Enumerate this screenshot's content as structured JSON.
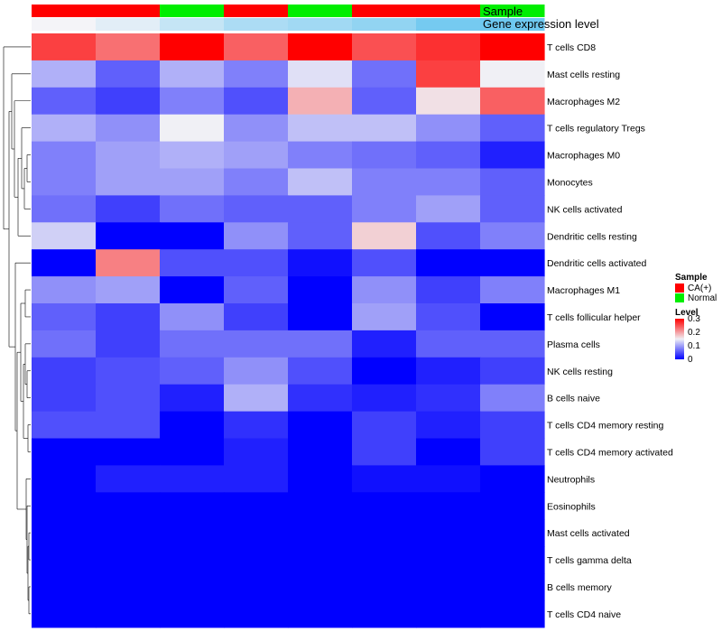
{
  "chart_data": {
    "type": "heatmap",
    "title": "",
    "annotation_tracks": [
      "Sample",
      "Gene expression level"
    ],
    "sample_groups": [
      "CA(+)",
      "CA(+)",
      "Normal",
      "CA(+)",
      "Normal",
      "CA(+)",
      "CA(+)",
      "Normal"
    ],
    "expression_levels": [
      0.55,
      0.5,
      0.42,
      0.35,
      0.32,
      0.28,
      0.2,
      0.18
    ],
    "rows": [
      "T cells CD8",
      "Mast cells resting",
      "Macrophages M2",
      "T cells regulatory  Tregs",
      "Macrophages M0",
      "Monocytes",
      "NK cells activated",
      "Dendritic cells resting",
      "Dendritic cells activated",
      "Macrophages M1",
      "T cells follicular helper",
      "Plasma cells",
      "NK cells resting",
      "B cells naive",
      "T cells CD4 memory resting",
      "T cells CD4 memory activated",
      "Neutrophils",
      "Eosinophils",
      "Mast cells activated",
      "T cells gamma delta",
      "B cells memory",
      "T cells CD4 naive"
    ],
    "values": [
      [
        0.26,
        0.23,
        0.3,
        0.24,
        0.3,
        0.25,
        0.27,
        0.3
      ],
      [
        0.11,
        0.06,
        0.11,
        0.08,
        0.14,
        0.07,
        0.26,
        0.15
      ],
      [
        0.06,
        0.04,
        0.08,
        0.05,
        0.19,
        0.06,
        0.16,
        0.24
      ],
      [
        0.11,
        0.09,
        0.15,
        0.09,
        0.12,
        0.12,
        0.09,
        0.06
      ],
      [
        0.08,
        0.1,
        0.11,
        0.1,
        0.08,
        0.07,
        0.06,
        0.02
      ],
      [
        0.08,
        0.1,
        0.1,
        0.08,
        0.12,
        0.08,
        0.08,
        0.06
      ],
      [
        0.07,
        0.04,
        0.07,
        0.06,
        0.06,
        0.08,
        0.1,
        0.06
      ],
      [
        0.13,
        0.0,
        0.0,
        0.09,
        0.06,
        0.17,
        0.05,
        0.08
      ],
      [
        0.0,
        0.22,
        0.05,
        0.05,
        0.01,
        0.05,
        0.0,
        0.0
      ],
      [
        0.09,
        0.1,
        0.0,
        0.06,
        0.0,
        0.09,
        0.04,
        0.08
      ],
      [
        0.06,
        0.04,
        0.09,
        0.04,
        0.0,
        0.1,
        0.05,
        0.0
      ],
      [
        0.07,
        0.04,
        0.07,
        0.07,
        0.07,
        0.02,
        0.06,
        0.06
      ],
      [
        0.04,
        0.05,
        0.06,
        0.09,
        0.05,
        0.0,
        0.02,
        0.04
      ],
      [
        0.04,
        0.05,
        0.02,
        0.11,
        0.03,
        0.02,
        0.03,
        0.08
      ],
      [
        0.05,
        0.05,
        0.0,
        0.03,
        0.0,
        0.04,
        0.02,
        0.04
      ],
      [
        0.0,
        0.0,
        0.0,
        0.02,
        0.0,
        0.04,
        0.0,
        0.04
      ],
      [
        0.0,
        0.02,
        0.02,
        0.02,
        0.0,
        0.01,
        0.01,
        0.0
      ],
      [
        0.0,
        0.0,
        0.0,
        0.0,
        0.0,
        0.0,
        0.0,
        0.0
      ],
      [
        0.0,
        0.0,
        0.0,
        0.0,
        0.0,
        0.0,
        0.0,
        0.0
      ],
      [
        0.0,
        0.0,
        0.0,
        0.0,
        0.0,
        0.0,
        0.0,
        0.0
      ],
      [
        0.0,
        0.0,
        0.0,
        0.0,
        0.0,
        0.0,
        0.0,
        0.0
      ],
      [
        0.0,
        0.0,
        0.0,
        0.0,
        0.0,
        0.0,
        0.0,
        0.0
      ]
    ],
    "color_range": [
      0,
      0.3
    ],
    "colors": {
      "low": "#0000ff",
      "mid": "#f0f0f5",
      "high": "#ff0000"
    },
    "legend": {
      "sample_title": "Sample",
      "sample_entries": [
        {
          "label": "CA(+)",
          "color": "#ff0000"
        },
        {
          "label": "Normal",
          "color": "#00ee00"
        }
      ],
      "level_title": "Level",
      "level_ticks": [
        {
          "label": "0.3",
          "value": 0.3
        },
        {
          "label": "0.2",
          "value": 0.2
        },
        {
          "label": "0.1",
          "value": 0.1
        },
        {
          "label": "0",
          "value": 0
        }
      ]
    },
    "expression_colors": {
      "high": "#f4f4f8",
      "low": "#6ec8f0"
    },
    "row_dendrogram": true
  }
}
